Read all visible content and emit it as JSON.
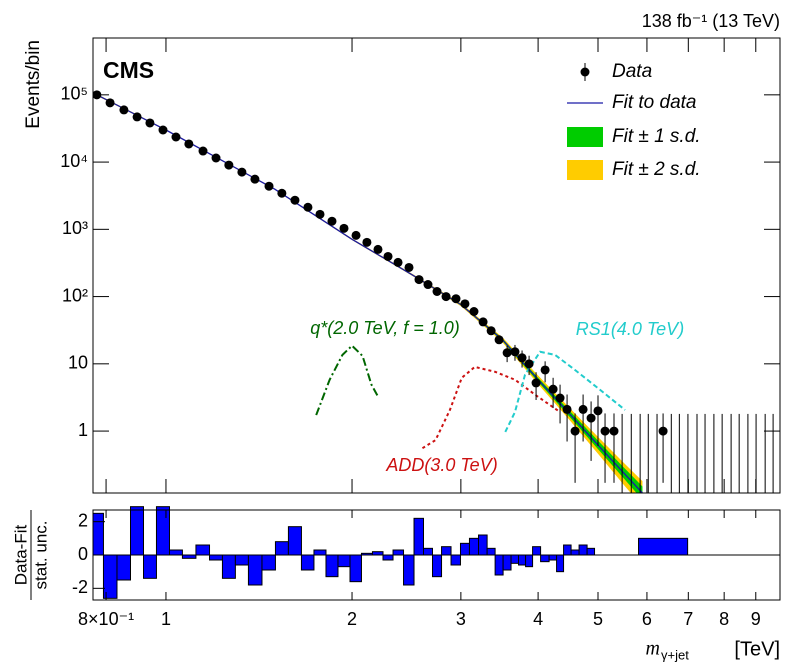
{
  "chart_data": [
    {
      "type": "scatter",
      "title": "138 fb⁻¹ (13 TeV)",
      "label": "CMS",
      "ylabel": "Events/bin",
      "xscale": "log",
      "yscale": "log",
      "xlim": [
        0.762,
        9.85
      ],
      "ylim": [
        0.12,
        700000
      ],
      "yticks": [
        1,
        10,
        {
          "value": 100,
          "label": "10²"
        },
        {
          "value": 1000,
          "label": "10³"
        },
        {
          "value": 10000,
          "label": "10⁴"
        },
        {
          "value": 100000,
          "label": "10⁵"
        }
      ],
      "series": [
        {
          "name": "Data",
          "color": "#000000",
          "x": [
            0.773,
            0.812,
            0.855,
            0.898,
            0.942,
            0.989,
            1.038,
            1.089,
            1.148,
            1.205,
            1.264,
            1.327,
            1.393,
            1.468,
            1.54,
            1.617,
            1.697,
            1.775,
            1.856,
            1.941,
            2.03,
            2.114,
            2.203,
            2.287,
            2.374,
            2.473,
            2.567,
            2.654,
            2.745,
            2.839,
            2.946,
            3.046,
            3.15,
            3.259,
            3.358,
            3.459,
            3.564,
            3.67,
            3.768,
            3.868,
            3.97,
            4.106,
            4.23,
            4.341,
            4.456,
            4.591,
            4.73,
            4.873,
            5.0,
            5.133,
            5.307,
            6.372
          ],
          "values": [
            100000,
            76000,
            59700,
            47000,
            38200,
            30000,
            23600,
            18600,
            14600,
            11500,
            9020,
            7090,
            5570,
            4380,
            3440,
            2710,
            2130,
            1670,
            1320,
            1035,
            813,
            640,
            503,
            395,
            322,
            271,
            179,
            151,
            119,
            100,
            93,
            78,
            60,
            42,
            31,
            22.8,
            14.6,
            15.1,
            12.3,
            10,
            5.2,
            8.1,
            4.2,
            3.1,
            2.1,
            1,
            2.1,
            1.56,
            2.0,
            1,
            1,
            1
          ],
          "errors": [
            null,
            null,
            null,
            null,
            null,
            null,
            null,
            null,
            null,
            null,
            null,
            null,
            null,
            null,
            null,
            null,
            null,
            null,
            null,
            null,
            null,
            null,
            null,
            null,
            null,
            null,
            null,
            null,
            null,
            null,
            null,
            null,
            null,
            null,
            null,
            null,
            4,
            4,
            3.5,
            3.2,
            2.3,
            2.8,
            2,
            1.8,
            1.4,
            0.83,
            1.4,
            1.2,
            1.4,
            0.83,
            0.83,
            0.83
          ]
        },
        {
          "name": "Fit to data",
          "color": "#1a1aa6",
          "x": [
            0.773,
            1,
            1.5,
            2,
            2.5,
            3,
            3.5,
            4,
            4.5,
            5,
            5.5,
            5.9
          ],
          "values": [
            100000,
            30000,
            3950,
            710,
            212,
            76,
            23,
            5.8,
            1.8,
            0.62,
            0.24,
            0.12
          ]
        },
        {
          "name": "Fit ± 1 s.d.",
          "color": "#00cc00",
          "x": [
            0.773,
            1,
            1.5,
            2,
            2.5,
            3,
            3.5,
            4,
            4.5,
            5,
            5.5,
            5.9
          ],
          "low": [
            98500,
            29700,
            3910,
            700,
            208,
            74,
            22,
            5.4,
            1.62,
            0.54,
            0.2,
            0.095
          ],
          "high": [
            101500,
            30300,
            3990,
            720,
            216,
            78,
            24,
            6.2,
            2.0,
            0.72,
            0.29,
            0.15
          ]
        },
        {
          "name": "Fit ± 2 s.d.",
          "color": "#ffcc00",
          "x": [
            0.773,
            1,
            1.5,
            2,
            2.5,
            3,
            3.5,
            4,
            4.5,
            5,
            5.5,
            5.9
          ],
          "low": [
            97000,
            29400,
            3870,
            690,
            205,
            72,
            21,
            5.0,
            1.45,
            0.46,
            0.16,
            0.075
          ],
          "high": [
            103000,
            30600,
            4030,
            730,
            219,
            80,
            25,
            6.7,
            2.2,
            0.82,
            0.34,
            0.18
          ]
        },
        {
          "name": "q*(2.0 TeV, f = 1.0)",
          "color": "#006600",
          "dash": "8 3 2 3",
          "x": [
            1.75,
            1.84,
            1.93,
            2.0,
            2.08,
            2.15,
            2.21
          ],
          "values": [
            1.73,
            5.8,
            13.6,
            18.6,
            13.1,
            4.9,
            3.1
          ]
        },
        {
          "name": "ADD(3.0 TeV)",
          "color": "#cc1111",
          "dash": "3 3",
          "x": [
            2.6,
            2.73,
            2.88,
            3.01,
            3.16,
            3.41,
            3.67,
            3.96,
            4.34
          ],
          "values": [
            0.557,
            0.734,
            2.06,
            6.2,
            9.0,
            7.6,
            5.8,
            3.45,
            1.92
          ]
        },
        {
          "name": "RS1(4.0 TeV)",
          "color": "#22cccc",
          "dash": "5 3",
          "x": [
            3.54,
            3.67,
            3.81,
            4.03,
            4.26,
            4.59,
            5.04,
            5.53
          ],
          "values": [
            0.97,
            1.92,
            6.9,
            15.1,
            13.6,
            8.1,
            4.1,
            2.06
          ]
        }
      ],
      "empty_bins": {
        "x": [
          5.47,
          5.66,
          5.85,
          6.03,
          6.23,
          6.57,
          6.77,
          6.99,
          7.23,
          7.45,
          7.7,
          7.94,
          8.21,
          8.46,
          8.74,
          9.01,
          9.32,
          9.6
        ],
        "error": 1.8
      }
    },
    {
      "type": "bar",
      "ylabel": [
        "Data-Fit",
        "stat. unc."
      ],
      "color": "#0000ff",
      "xscale": "log",
      "xlim": [
        0.762,
        9.85
      ],
      "ylim": [
        -2.7,
        2.7
      ],
      "yticks": [
        -2,
        0,
        2
      ],
      "xticks": [
        {
          "value": 0.8,
          "label": "8×10⁻¹"
        },
        1,
        2,
        3,
        4,
        5,
        6,
        7,
        8,
        9
      ],
      "xlabel": {
        "symbol": "m",
        "subscript": "γ+jet",
        "unit": "[TeV]"
      },
      "values": [
        2.5,
        -2.6,
        -1.5,
        2.9,
        -1.4,
        2.9,
        0.3,
        -0.2,
        0.6,
        -0.3,
        -1.4,
        -0.6,
        -1.8,
        -0.9,
        0.8,
        1.7,
        -0.9,
        0.3,
        -1.3,
        -0.7,
        -1.6,
        0.1,
        0.2,
        -0.3,
        0.3,
        -1.8,
        2.2,
        0.4,
        -1.3,
        0.5,
        -0.6,
        0.7,
        1.0,
        1.2,
        0.4,
        -1.2,
        -0.9,
        -0.5,
        -0.6,
        -0.7,
        0.5,
        -0.4,
        -0.3,
        -1.0,
        0.6,
        0.3,
        0.6,
        0.4,
        0.0,
        0.0,
        0.0,
        1.0
      ]
    }
  ]
}
